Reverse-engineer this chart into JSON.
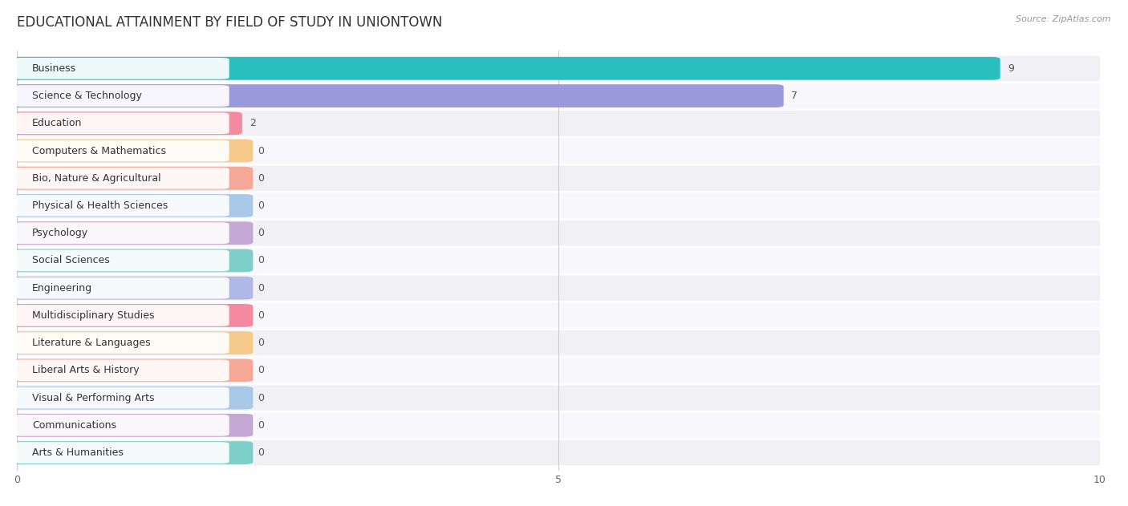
{
  "title": "EDUCATIONAL ATTAINMENT BY FIELD OF STUDY IN UNIONTOWN",
  "source": "Source: ZipAtlas.com",
  "categories": [
    "Business",
    "Science & Technology",
    "Education",
    "Computers & Mathematics",
    "Bio, Nature & Agricultural",
    "Physical & Health Sciences",
    "Psychology",
    "Social Sciences",
    "Engineering",
    "Multidisciplinary Studies",
    "Literature & Languages",
    "Liberal Arts & History",
    "Visual & Performing Arts",
    "Communications",
    "Arts & Humanities"
  ],
  "values": [
    9,
    7,
    2,
    0,
    0,
    0,
    0,
    0,
    0,
    0,
    0,
    0,
    0,
    0,
    0
  ],
  "bar_colors": [
    "#29bfbf",
    "#9999dd",
    "#f589a0",
    "#f5c98a",
    "#f5a898",
    "#a8c8e8",
    "#c4a8d4",
    "#7ecfca",
    "#b0b8e8",
    "#f589a0",
    "#f5c98a",
    "#f5a898",
    "#a8c8e8",
    "#c4a8d4",
    "#7ecfca"
  ],
  "zero_bar_width": 2.1,
  "xlim": [
    0,
    10
  ],
  "xticks": [
    0,
    5,
    10
  ],
  "background_color": "#ffffff",
  "title_fontsize": 12,
  "label_fontsize": 9,
  "value_fontsize": 9
}
